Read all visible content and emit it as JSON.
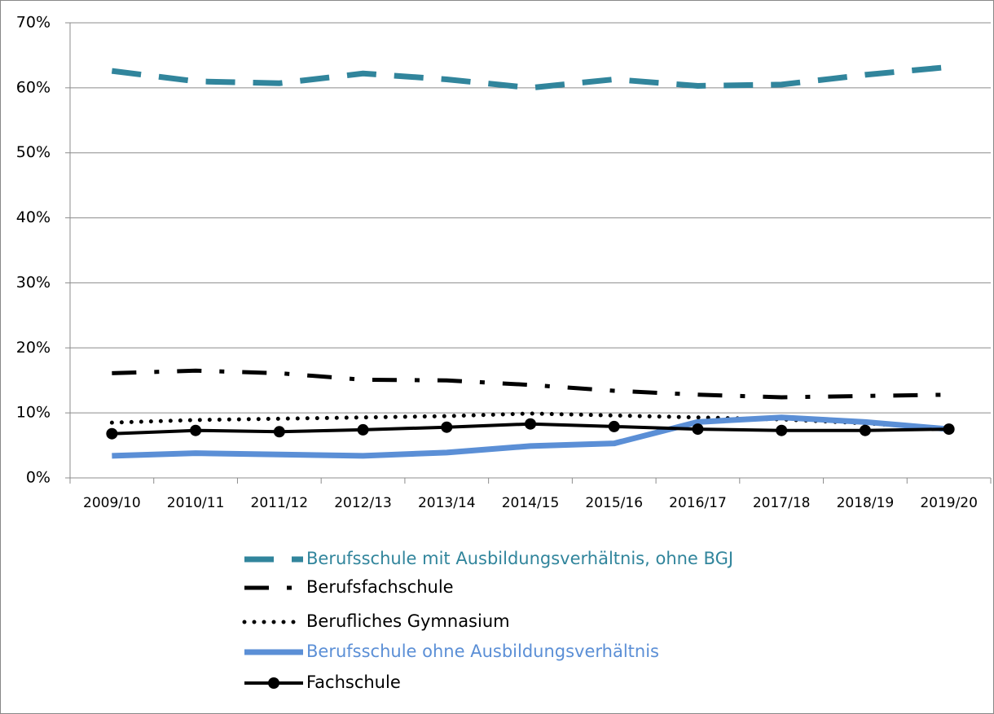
{
  "chart_data": {
    "type": "line",
    "categories": [
      "2009/10",
      "2010/11",
      "2011/12",
      "2012/13",
      "2013/14",
      "2014/15",
      "2015/16",
      "2016/17",
      "2017/18",
      "2018/19",
      "2019/20"
    ],
    "ylim": [
      0,
      70
    ],
    "yticks": [
      {
        "value": 0,
        "label": "0%"
      },
      {
        "value": 10,
        "label": "10%"
      },
      {
        "value": 20,
        "label": "20%"
      },
      {
        "value": 30,
        "label": "30%"
      },
      {
        "value": 40,
        "label": "40%"
      },
      {
        "value": 50,
        "label": "50%"
      },
      {
        "value": 60,
        "label": "60%"
      },
      {
        "value": 70,
        "label": "70%"
      }
    ],
    "grid": true,
    "legend": "bottom",
    "series": [
      {
        "name": "Berufsschule mit Ausbildungsverhältnis, ohne BGJ",
        "color": "#31859c",
        "linestyle": "dashed",
        "values": [
          62.6,
          61.0,
          60.7,
          62.2,
          61.3,
          60.0,
          61.3,
          60.3,
          60.5,
          62.0,
          63.2
        ]
      },
      {
        "name": "Berufsfachschule",
        "color": "#000000",
        "linestyle": "dashdot",
        "values": [
          16.1,
          16.5,
          16.1,
          15.1,
          15.0,
          14.3,
          13.4,
          12.8,
          12.4,
          12.6,
          12.8
        ]
      },
      {
        "name": "Berufliches Gymnasium",
        "color": "#000000",
        "linestyle": "dotted",
        "values": [
          8.5,
          8.9,
          9.1,
          9.3,
          9.5,
          9.9,
          9.6,
          9.3,
          9.0,
          8.4,
          7.6
        ]
      },
      {
        "name": "Berufsschule ohne Ausbildungsverhältnis",
        "color": "#5b8fd6",
        "linestyle": "solid",
        "values": [
          3.4,
          3.8,
          3.6,
          3.4,
          3.9,
          4.9,
          5.3,
          8.6,
          9.3,
          8.6,
          7.5
        ]
      },
      {
        "name": "Fachschule",
        "color": "#000000",
        "linestyle": "marker",
        "values": [
          6.8,
          7.3,
          7.1,
          7.4,
          7.8,
          8.3,
          7.9,
          7.5,
          7.3,
          7.3,
          7.5
        ]
      }
    ]
  }
}
